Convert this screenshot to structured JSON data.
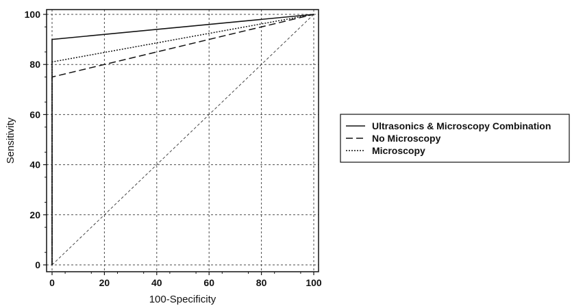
{
  "chart_data": {
    "type": "line",
    "xlabel": "100-Specificity",
    "ylabel": "Sensitivity",
    "xlim": [
      0,
      100
    ],
    "ylim": [
      0,
      100
    ],
    "xticks": [
      0,
      20,
      40,
      60,
      80,
      100
    ],
    "yticks": [
      0,
      20,
      40,
      60,
      80,
      100
    ],
    "grid": true,
    "legend_position": "right",
    "reference_line": {
      "x": [
        0,
        100
      ],
      "y": [
        0,
        100
      ],
      "style": "dashed"
    },
    "series": [
      {
        "name": "Ultrasonics & Microscopy Combination",
        "style": "solid",
        "color": "#111111",
        "x": [
          0,
          0,
          100
        ],
        "y": [
          0,
          90,
          100
        ]
      },
      {
        "name": "No Microscopy",
        "style": "dashed",
        "color": "#111111",
        "x": [
          0,
          0,
          100
        ],
        "y": [
          0,
          75,
          100
        ]
      },
      {
        "name": "Microscopy",
        "style": "dotted",
        "color": "#111111",
        "x": [
          0,
          0,
          100
        ],
        "y": [
          0,
          81,
          100
        ]
      }
    ]
  }
}
